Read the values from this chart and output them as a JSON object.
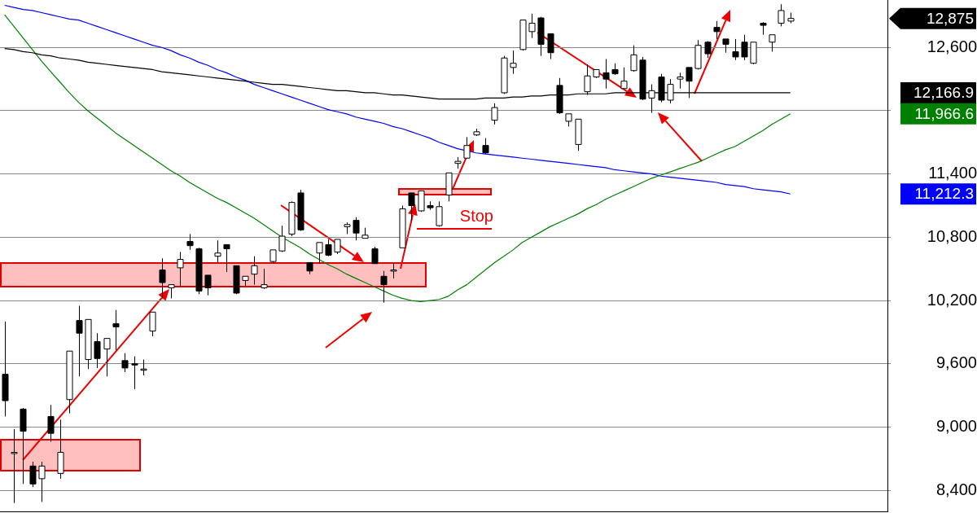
{
  "chart_data": {
    "type": "candlestick",
    "categories": [
      null,
      null,
      null,
      null,
      null,
      null,
      null,
      null,
      null,
      null,
      null,
      null,
      null,
      null,
      null,
      null,
      null,
      null,
      null,
      null,
      null,
      null,
      null,
      null,
      null,
      null,
      null,
      null,
      null,
      null,
      null,
      null,
      null,
      null,
      null,
      null,
      null,
      null,
      null,
      null,
      null,
      null,
      null,
      null,
      null,
      null,
      null,
      null,
      null,
      null,
      null,
      null,
      null,
      null,
      null,
      null,
      null,
      null,
      null,
      null,
      null,
      null,
      null,
      null,
      null,
      null,
      null,
      null,
      null,
      null,
      null,
      null,
      null,
      null,
      null,
      null,
      null,
      null,
      null,
      null,
      null,
      null,
      null,
      null,
      null,
      null
    ],
    "ohlc": [
      [
        9500,
        10000,
        9100,
        9250
      ],
      [
        8750,
        8980,
        8280,
        8760
      ],
      [
        9170,
        9180,
        8460,
        8960
      ],
      [
        8630,
        8670,
        8430,
        8460
      ],
      [
        8510,
        8670,
        8290,
        8630
      ],
      [
        9100,
        9210,
        8860,
        8940
      ],
      [
        8560,
        9070,
        8510,
        8760
      ],
      [
        9260,
        9720,
        9130,
        9720
      ],
      [
        10010,
        10150,
        9480,
        9890
      ],
      [
        9640,
        10020,
        9550,
        10020
      ],
      [
        9810,
        9890,
        9560,
        9650
      ],
      [
        9740,
        9840,
        9480,
        9840
      ],
      [
        9980,
        10110,
        9730,
        9950
      ],
      [
        9630,
        9700,
        9520,
        9560
      ],
      [
        9600,
        9670,
        9360,
        9590
      ],
      [
        9550,
        9640,
        9490,
        9550
      ],
      [
        9910,
        10090,
        9860,
        10090
      ],
      [
        10490,
        10600,
        10220,
        10370
      ],
      [
        10320,
        10350,
        10220,
        10350
      ],
      [
        10510,
        10660,
        10330,
        10590
      ],
      [
        10760,
        10830,
        10680,
        10720
      ],
      [
        10690,
        10700,
        10260,
        10290
      ],
      [
        10440,
        10440,
        10250,
        10320
      ],
      [
        10620,
        10770,
        10560,
        10650
      ],
      [
        10730,
        10730,
        10470,
        10690
      ],
      [
        10530,
        10530,
        10260,
        10270
      ],
      [
        10390,
        10430,
        10340,
        10430
      ],
      [
        10450,
        10620,
        10350,
        10530
      ],
      [
        10320,
        10500,
        10310,
        10350
      ],
      [
        10570,
        10680,
        10550,
        10680
      ],
      [
        10670,
        10910,
        10660,
        10810
      ],
      [
        10830,
        11140,
        10810,
        11130
      ],
      [
        11220,
        11250,
        10860,
        10870
      ],
      [
        10560,
        10560,
        10450,
        10480
      ],
      [
        10650,
        10750,
        10550,
        10750
      ],
      [
        10730,
        10780,
        10620,
        10630
      ],
      [
        10660,
        10780,
        10640,
        10780
      ],
      [
        10900,
        10940,
        10830,
        10920
      ],
      [
        10960,
        10990,
        10770,
        10840
      ],
      [
        10790,
        10890,
        10790,
        10820
      ],
      [
        10690,
        10710,
        10550,
        10550
      ],
      [
        10430,
        10480,
        10180,
        10350
      ],
      [
        10490,
        10550,
        10410,
        10490
      ],
      [
        10700,
        11100,
        10700,
        11070
      ],
      [
        11220,
        11220,
        10960,
        11100
      ],
      [
        11050,
        11240,
        11040,
        11240
      ],
      [
        11100,
        11140,
        11060,
        11080
      ],
      [
        10910,
        11140,
        10900,
        11090
      ],
      [
        11200,
        11410,
        11140,
        11410
      ],
      [
        11500,
        11560,
        11450,
        11520
      ],
      [
        11550,
        11750,
        11550,
        11670
      ],
      [
        11770,
        11830,
        11760,
        11800
      ],
      [
        11670,
        11740,
        11590,
        11600
      ],
      [
        11910,
        12070,
        11870,
        12030
      ],
      [
        12170,
        12520,
        12160,
        12500
      ],
      [
        12410,
        12570,
        12350,
        12450
      ],
      [
        12580,
        12860,
        12570,
        12860
      ],
      [
        12750,
        12920,
        12690,
        12830
      ],
      [
        12880,
        12890,
        12520,
        12630
      ],
      [
        12730,
        12730,
        12490,
        12550
      ],
      [
        12240,
        12310,
        11970,
        11980
      ],
      [
        11900,
        11970,
        11850,
        11970
      ],
      [
        11680,
        11920,
        11620,
        11920
      ],
      [
        12180,
        12440,
        12150,
        12330
      ],
      [
        12320,
        12390,
        12310,
        12390
      ],
      [
        12360,
        12490,
        12210,
        12300
      ],
      [
        12390,
        12450,
        12340,
        12350
      ],
      [
        12210,
        12410,
        12210,
        12280
      ],
      [
        12380,
        12620,
        12370,
        12530
      ],
      [
        12480,
        12510,
        12100,
        12110
      ],
      [
        12120,
        12250,
        11980,
        12190
      ],
      [
        12320,
        12350,
        12080,
        12100
      ],
      [
        12100,
        12300,
        12070,
        12250
      ],
      [
        12300,
        12360,
        12210,
        12320
      ],
      [
        12410,
        12410,
        12120,
        12280
      ],
      [
        12400,
        12670,
        12390,
        12620
      ],
      [
        12650,
        12660,
        12500,
        12540
      ],
      [
        12790,
        12850,
        12680,
        12750
      ],
      [
        12680,
        12680,
        12550,
        12630
      ],
      [
        12560,
        12680,
        12480,
        12510
      ],
      [
        12650,
        12720,
        12480,
        12510
      ],
      [
        12450,
        12650,
        12440,
        12650
      ],
      [
        12830,
        12840,
        12720,
        12810
      ],
      [
        12650,
        12720,
        12560,
        12720
      ],
      [
        12830,
        13010,
        12800,
        12950
      ],
      [
        12850,
        12930,
        12830,
        12875
      ]
    ],
    "series": [
      {
        "type": "line",
        "color": "#000000",
        "values": [
          12590,
          12580,
          12560,
          12550,
          12530,
          12520,
          12500,
          12490,
          12480,
          12460,
          12450,
          12440,
          12430,
          12420,
          12410,
          12400,
          12390,
          12370,
          12360,
          12350,
          12340,
          12330,
          12320,
          12310,
          12300,
          12290,
          12280,
          12270,
          12260,
          12250,
          12250,
          12240,
          12230,
          12220,
          12210,
          12200,
          12190,
          12190,
          12180,
          12170,
          12170,
          12160,
          12150,
          12150,
          12140,
          12130,
          12120,
          12110,
          12110,
          12110,
          12110,
          12110,
          12120,
          12120,
          12120,
          12130,
          12130,
          12140,
          12140,
          12150,
          12150,
          12150,
          12160,
          12160,
          12160,
          12160,
          12170,
          12170,
          12170,
          12170,
          12170,
          12170,
          12170,
          12170,
          12170,
          12170,
          12170,
          12170,
          12170,
          12170,
          12170,
          12170,
          12170,
          12170,
          12170,
          12170
        ]
      },
      {
        "type": "line",
        "color": "#008000",
        "values": [
          12910,
          12800,
          12690,
          12580,
          12470,
          12370,
          12270,
          12170,
          12080,
          12000,
          11930,
          11860,
          11790,
          11730,
          11670,
          11610,
          11550,
          11490,
          11430,
          11380,
          11320,
          11270,
          11220,
          11170,
          11130,
          11080,
          11030,
          10980,
          10920,
          10860,
          10800,
          10750,
          10700,
          10640,
          10590,
          10540,
          10500,
          10450,
          10410,
          10370,
          10330,
          10290,
          10250,
          10220,
          10200,
          10190,
          10200,
          10210,
          10240,
          10300,
          10350,
          10420,
          10490,
          10560,
          10620,
          10680,
          10750,
          10800,
          10850,
          10900,
          10940,
          10980,
          11020,
          11070,
          11110,
          11160,
          11200,
          11240,
          11280,
          11320,
          11360,
          11390,
          11420,
          11450,
          11480,
          11510,
          11550,
          11590,
          11630,
          11660,
          11710,
          11760,
          11810,
          11870,
          11920,
          11970
        ]
      },
      {
        "type": "line",
        "color": "#0000ff",
        "values": [
          13000,
          12980,
          12960,
          12950,
          12930,
          12910,
          12890,
          12870,
          12860,
          12830,
          12800,
          12770,
          12740,
          12710,
          12680,
          12650,
          12620,
          12600,
          12570,
          12530,
          12500,
          12460,
          12430,
          12390,
          12360,
          12320,
          12290,
          12250,
          12220,
          12190,
          12160,
          12130,
          12100,
          12070,
          12040,
          12010,
          11990,
          11970,
          11940,
          11920,
          11900,
          11880,
          11850,
          11830,
          11800,
          11770,
          11740,
          11700,
          11670,
          11640,
          11620,
          11600,
          11590,
          11580,
          11570,
          11560,
          11550,
          11540,
          11530,
          11520,
          11510,
          11500,
          11490,
          11480,
          11470,
          11460,
          11440,
          11430,
          11420,
          11410,
          11400,
          11380,
          11370,
          11360,
          11350,
          11340,
          11330,
          11320,
          11300,
          11290,
          11280,
          11260,
          11250,
          11240,
          11230,
          11210
        ]
      }
    ],
    "ylim": [
      8200,
      13050
    ],
    "yticks": [
      {
        "value": 8400,
        "label": "8,400"
      },
      {
        "value": 9000,
        "label": "9,000"
      },
      {
        "value": 9600,
        "label": "9,600"
      },
      {
        "value": 10200,
        "label": "10,200"
      },
      {
        "value": 10800,
        "label": "10,800"
      },
      {
        "value": 11400,
        "label": "11,400"
      },
      {
        "value": 12000,
        "label": null
      },
      {
        "value": 12600,
        "label": "12,600"
      }
    ],
    "tick_labels": "y",
    "grid": "y",
    "legend": false,
    "marker": "none",
    "annotations": [
      "12,875",
      "12,166.9",
      "11,966.6",
      "11,212.3",
      "Stop"
    ]
  }
}
